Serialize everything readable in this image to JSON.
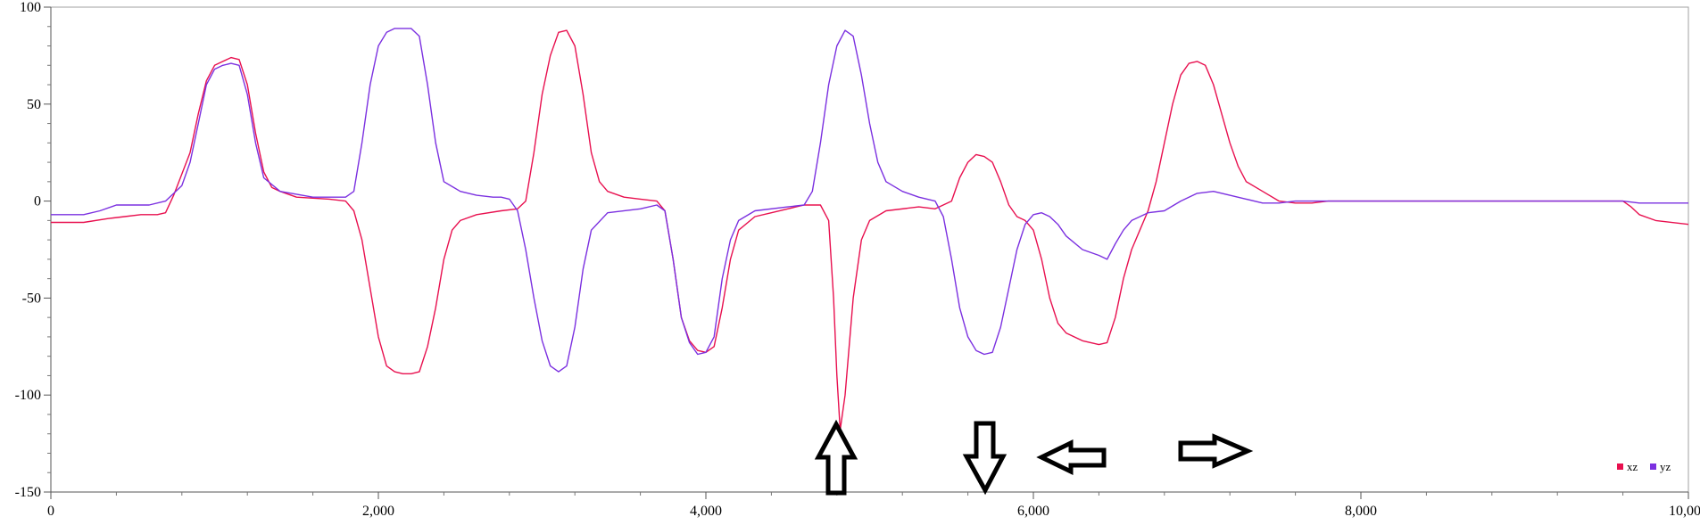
{
  "chart_data": {
    "type": "line",
    "xlim": [
      0,
      10000
    ],
    "ylim": [
      -150,
      100
    ],
    "x_ticks": [
      0,
      2000,
      4000,
      6000,
      8000,
      10000
    ],
    "x_tick_labels": [
      "0",
      "2,000",
      "4,000",
      "6,000",
      "8,000",
      "10,000"
    ],
    "y_ticks": [
      100,
      50,
      0,
      -50,
      -100,
      -150
    ],
    "y_tick_labels": [
      "100",
      "50",
      "0",
      "-50",
      "-100",
      "-150"
    ],
    "grid": false,
    "legend_position": "bottom-right",
    "series": [
      {
        "name": "xz",
        "color": "#e8104f",
        "points": [
          [
            0,
            -11
          ],
          [
            200,
            -11
          ],
          [
            350,
            -9
          ],
          [
            450,
            -8
          ],
          [
            550,
            -7
          ],
          [
            650,
            -7
          ],
          [
            700,
            -6
          ],
          [
            750,
            3
          ],
          [
            850,
            25
          ],
          [
            900,
            45
          ],
          [
            950,
            62
          ],
          [
            1000,
            70
          ],
          [
            1050,
            72
          ],
          [
            1100,
            74
          ],
          [
            1150,
            73
          ],
          [
            1200,
            60
          ],
          [
            1250,
            35
          ],
          [
            1300,
            15
          ],
          [
            1350,
            7
          ],
          [
            1400,
            5
          ],
          [
            1500,
            2
          ],
          [
            1700,
            1
          ],
          [
            1800,
            0
          ],
          [
            1850,
            -5
          ],
          [
            1900,
            -20
          ],
          [
            1950,
            -45
          ],
          [
            2000,
            -70
          ],
          [
            2050,
            -85
          ],
          [
            2100,
            -88
          ],
          [
            2150,
            -89
          ],
          [
            2200,
            -89
          ],
          [
            2250,
            -88
          ],
          [
            2300,
            -75
          ],
          [
            2350,
            -55
          ],
          [
            2400,
            -30
          ],
          [
            2450,
            -15
          ],
          [
            2500,
            -10
          ],
          [
            2600,
            -7
          ],
          [
            2750,
            -5
          ],
          [
            2850,
            -4
          ],
          [
            2900,
            0
          ],
          [
            2950,
            25
          ],
          [
            3000,
            55
          ],
          [
            3050,
            75
          ],
          [
            3100,
            87
          ],
          [
            3150,
            88
          ],
          [
            3200,
            80
          ],
          [
            3250,
            55
          ],
          [
            3300,
            25
          ],
          [
            3350,
            10
          ],
          [
            3400,
            5
          ],
          [
            3500,
            2
          ],
          [
            3600,
            1
          ],
          [
            3700,
            0
          ],
          [
            3750,
            -5
          ],
          [
            3800,
            -30
          ],
          [
            3850,
            -60
          ],
          [
            3900,
            -72
          ],
          [
            3950,
            -77
          ],
          [
            4000,
            -78
          ],
          [
            4050,
            -75
          ],
          [
            4100,
            -55
          ],
          [
            4150,
            -30
          ],
          [
            4200,
            -15
          ],
          [
            4300,
            -8
          ],
          [
            4400,
            -6
          ],
          [
            4500,
            -4
          ],
          [
            4600,
            -2
          ],
          [
            4700,
            -2
          ],
          [
            4750,
            -10
          ],
          [
            4780,
            -50
          ],
          [
            4800,
            -90
          ],
          [
            4820,
            -118
          ],
          [
            4850,
            -100
          ],
          [
            4900,
            -50
          ],
          [
            4950,
            -20
          ],
          [
            5000,
            -10
          ],
          [
            5100,
            -5
          ],
          [
            5300,
            -3
          ],
          [
            5400,
            -4
          ],
          [
            5500,
            0
          ],
          [
            5550,
            12
          ],
          [
            5600,
            20
          ],
          [
            5650,
            24
          ],
          [
            5700,
            23
          ],
          [
            5750,
            20
          ],
          [
            5800,
            10
          ],
          [
            5850,
            -2
          ],
          [
            5900,
            -8
          ],
          [
            5950,
            -10
          ],
          [
            6000,
            -15
          ],
          [
            6050,
            -30
          ],
          [
            6100,
            -50
          ],
          [
            6150,
            -63
          ],
          [
            6200,
            -68
          ],
          [
            6300,
            -72
          ],
          [
            6400,
            -74
          ],
          [
            6450,
            -73
          ],
          [
            6500,
            -60
          ],
          [
            6550,
            -40
          ],
          [
            6600,
            -25
          ],
          [
            6650,
            -15
          ],
          [
            6700,
            -5
          ],
          [
            6750,
            10
          ],
          [
            6800,
            30
          ],
          [
            6850,
            50
          ],
          [
            6900,
            65
          ],
          [
            6950,
            71
          ],
          [
            7000,
            72
          ],
          [
            7050,
            70
          ],
          [
            7100,
            60
          ],
          [
            7150,
            45
          ],
          [
            7200,
            30
          ],
          [
            7250,
            18
          ],
          [
            7300,
            10
          ],
          [
            7400,
            5
          ],
          [
            7500,
            0
          ],
          [
            7600,
            -1
          ],
          [
            7700,
            -1
          ],
          [
            7800,
            0
          ],
          [
            8000,
            0
          ],
          [
            9500,
            0
          ],
          [
            9600,
            0
          ],
          [
            9650,
            -3
          ],
          [
            9700,
            -7
          ],
          [
            9800,
            -10
          ],
          [
            10000,
            -12
          ]
        ]
      },
      {
        "name": "yz",
        "color": "#7b30e0",
        "points": [
          [
            0,
            -7
          ],
          [
            200,
            -7
          ],
          [
            300,
            -5
          ],
          [
            400,
            -2
          ],
          [
            600,
            -2
          ],
          [
            700,
            0
          ],
          [
            800,
            8
          ],
          [
            850,
            20
          ],
          [
            900,
            40
          ],
          [
            950,
            60
          ],
          [
            1000,
            68
          ],
          [
            1050,
            70
          ],
          [
            1100,
            71
          ],
          [
            1150,
            70
          ],
          [
            1200,
            55
          ],
          [
            1250,
            30
          ],
          [
            1300,
            12
          ],
          [
            1400,
            5
          ],
          [
            1600,
            2
          ],
          [
            1800,
            2
          ],
          [
            1850,
            5
          ],
          [
            1900,
            30
          ],
          [
            1950,
            60
          ],
          [
            2000,
            80
          ],
          [
            2050,
            87
          ],
          [
            2100,
            89
          ],
          [
            2200,
            89
          ],
          [
            2250,
            85
          ],
          [
            2300,
            60
          ],
          [
            2350,
            30
          ],
          [
            2400,
            10
          ],
          [
            2500,
            5
          ],
          [
            2600,
            3
          ],
          [
            2700,
            2
          ],
          [
            2750,
            2
          ],
          [
            2800,
            1
          ],
          [
            2850,
            -5
          ],
          [
            2900,
            -25
          ],
          [
            2950,
            -50
          ],
          [
            3000,
            -72
          ],
          [
            3050,
            -85
          ],
          [
            3100,
            -88
          ],
          [
            3150,
            -85
          ],
          [
            3200,
            -65
          ],
          [
            3250,
            -35
          ],
          [
            3300,
            -15
          ],
          [
            3400,
            -6
          ],
          [
            3600,
            -4
          ],
          [
            3700,
            -2
          ],
          [
            3750,
            -5
          ],
          [
            3800,
            -30
          ],
          [
            3850,
            -60
          ],
          [
            3900,
            -73
          ],
          [
            3950,
            -79
          ],
          [
            4000,
            -78
          ],
          [
            4050,
            -70
          ],
          [
            4100,
            -40
          ],
          [
            4150,
            -20
          ],
          [
            4200,
            -10
          ],
          [
            4300,
            -5
          ],
          [
            4500,
            -3
          ],
          [
            4600,
            -2
          ],
          [
            4650,
            5
          ],
          [
            4700,
            30
          ],
          [
            4750,
            60
          ],
          [
            4800,
            80
          ],
          [
            4850,
            88
          ],
          [
            4900,
            85
          ],
          [
            4950,
            65
          ],
          [
            5000,
            40
          ],
          [
            5050,
            20
          ],
          [
            5100,
            10
          ],
          [
            5200,
            5
          ],
          [
            5300,
            2
          ],
          [
            5400,
            0
          ],
          [
            5450,
            -8
          ],
          [
            5500,
            -30
          ],
          [
            5550,
            -55
          ],
          [
            5600,
            -70
          ],
          [
            5650,
            -77
          ],
          [
            5700,
            -79
          ],
          [
            5750,
            -78
          ],
          [
            5800,
            -65
          ],
          [
            5850,
            -45
          ],
          [
            5900,
            -25
          ],
          [
            5950,
            -12
          ],
          [
            6000,
            -7
          ],
          [
            6050,
            -6
          ],
          [
            6100,
            -8
          ],
          [
            6150,
            -12
          ],
          [
            6200,
            -18
          ],
          [
            6300,
            -25
          ],
          [
            6400,
            -28
          ],
          [
            6450,
            -30
          ],
          [
            6500,
            -22
          ],
          [
            6550,
            -15
          ],
          [
            6600,
            -10
          ],
          [
            6700,
            -6
          ],
          [
            6800,
            -5
          ],
          [
            6900,
            0
          ],
          [
            7000,
            4
          ],
          [
            7100,
            5
          ],
          [
            7200,
            3
          ],
          [
            7300,
            1
          ],
          [
            7400,
            -1
          ],
          [
            7500,
            -1
          ],
          [
            7600,
            0
          ],
          [
            8000,
            0
          ],
          [
            9500,
            0
          ],
          [
            9600,
            0
          ],
          [
            9700,
            -1
          ],
          [
            10000,
            -1
          ]
        ]
      }
    ]
  }
}
